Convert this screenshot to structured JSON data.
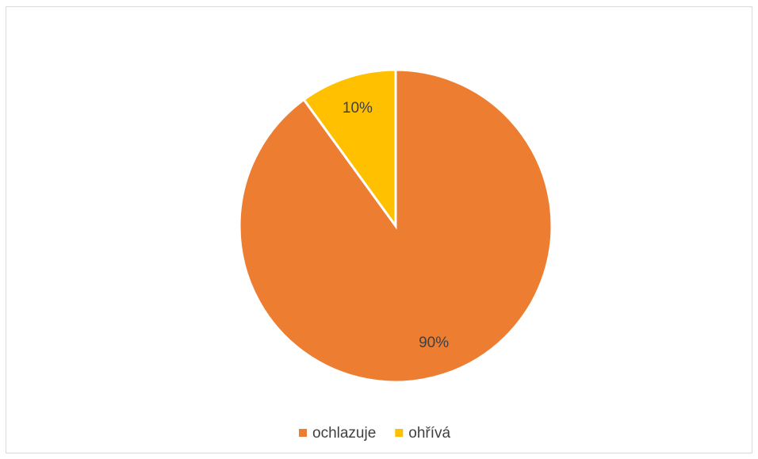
{
  "chart_data": {
    "type": "pie",
    "categories": [
      "ochlazuje",
      "ohřívá"
    ],
    "values": [
      90,
      10
    ],
    "value_labels": [
      "90%",
      "10%"
    ],
    "colors": [
      "#ED7D31",
      "#FFC000"
    ],
    "legend": "bottom"
  }
}
